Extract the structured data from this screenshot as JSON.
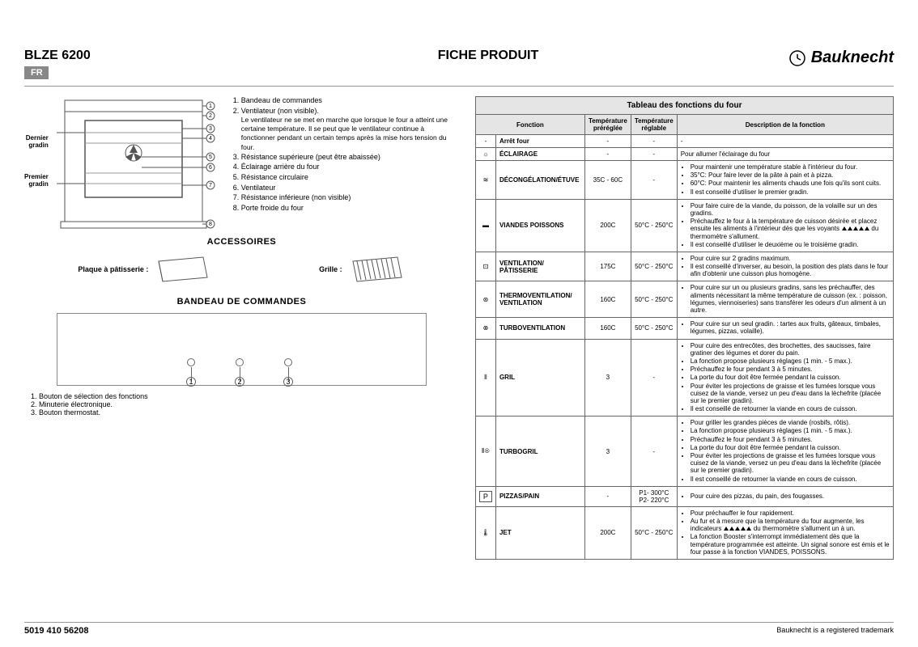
{
  "header": {
    "model": "BLZE 6200",
    "lang": "FR",
    "title": "FICHE PRODUIT",
    "brand": "Bauknecht"
  },
  "oven": {
    "label_top": "Dernier gradin",
    "label_bottom": "Premier gradin",
    "legend": [
      "Bandeau de commandes",
      "Ventilateur (non visible).",
      "Résistance supérieure (peut être abaissée)",
      "Éclairage arrière du four",
      "Résistance circulaire",
      "Ventilateur",
      "Résistance inférieure (non visible)",
      "Porte froide du four"
    ],
    "item2_sub": "Le ventilateur ne se met en marche que lorsque le four a atteint une certaine température. Il se peut que le ventilateur continue à fonctionner pendant un certain temps après la mise hors tension du four."
  },
  "accessories": {
    "title": "ACCESSOIRES",
    "items": [
      {
        "label": "Plaque à pâtisserie :"
      },
      {
        "label": "Grille :"
      }
    ]
  },
  "controls": {
    "title": "BANDEAU DE COMMANDES",
    "legend": [
      "Bouton de sélection des fonctions",
      "Minuterie électronique.",
      "Bouton thermostat."
    ]
  },
  "functions": {
    "caption": "Tableau des fonctions du four",
    "headers": {
      "function": "Fonction",
      "preset": "Température préréglée",
      "adjustable": "Température réglable",
      "desc": "Description de la fonction"
    },
    "rows": [
      {
        "icon": "-",
        "name": "Arrêt four",
        "preset": "-",
        "adjust": "-",
        "desc": [
          "-"
        ]
      },
      {
        "icon": "☼",
        "name": "ÉCLAIRAGE",
        "preset": "-",
        "adjust": "-",
        "desc": [
          "Pour allumer l'éclairage du four"
        ]
      },
      {
        "icon": "≋",
        "name": "DÉCONGÉLATION/ÉTUVE",
        "preset": "35C - 60C",
        "adjust": "-",
        "desc": [
          "Pour maintenir une température stable à l'intérieur du four.",
          "35°C: Pour faire lever de la pâte à pain et à pizza.",
          "60°C: Pour maintenir les aliments chauds une fois qu'ils sont cuits.",
          "Il est conseillé d'utiliser le premier gradin."
        ]
      },
      {
        "icon": "▬",
        "name": "VIANDES POISSONS",
        "preset": "200C",
        "adjust": "50°C - 250°C",
        "desc": [
          "Pour faire cuire de la viande, du poisson, de la volaille sur un des gradins.",
          "Préchauffez le four à la température de cuisson désirée et placez ensuite les aliments à l'intérieur dès que les voyants ▲ ▲ ▲ ▲ ▲ du thermomètre s'allument.",
          "Il est conseillé d'utiliser le deuxième ou le troisième gradin."
        ]
      },
      {
        "icon": "⊡",
        "name": "VENTILATION/ PÂTISSERIE",
        "preset": "175C",
        "adjust": "50°C - 250°C",
        "desc": [
          "Pour cuire sur 2 gradins maximum.",
          "Il est conseillé d'inverser, au besoin, la position des plats dans le four afin d'obtenir une cuisson plus homogène."
        ]
      },
      {
        "icon": "⊛",
        "name": "THERMOVENTILATION/ VENTILATION",
        "preset": "160C",
        "adjust": "50°C - 250°C",
        "desc": [
          "Pour cuire sur un ou plusieurs gradins, sans les préchauffer, des aliments nécessitant la même température de cuisson (ex. : poisson, légumes, viennoiseries) sans transférer les odeurs d'un aliment à un autre."
        ]
      },
      {
        "icon": "⊗",
        "name": "TURBOVENTILATION",
        "preset": "160C",
        "adjust": "50°C - 250°C",
        "desc": [
          "Pour cuire sur un seul gradin. : tartes aux fruits, gâteaux, timbales, légumes, pizzas, volaille)."
        ]
      },
      {
        "icon": "⫴",
        "name": "GRIL",
        "preset": "3",
        "adjust": "-",
        "desc": [
          "Pour cuire des entrecôtes, des brochettes, des saucisses, faire gratiner des légumes et dorer du pain.",
          "La fonction propose plusieurs réglages (1 min. - 5 max.).",
          "Préchauffez le four pendant 3 à 5 minutes.",
          "La porte du four doit être fermée pendant la cuisson.",
          "Pour éviter les projections de graisse et les fumées lorsque vous cuisez de la viande, versez un peu d'eau dans la lèchefrite (placée sur le premier gradin).",
          "Il est conseillé de retourner la viande en cours de cuisson."
        ]
      },
      {
        "icon": "⫴⊛",
        "name": "TURBOGRIL",
        "preset": "3",
        "adjust": "-",
        "desc": [
          "Pour griller les grandes pièces de viande (rosbifs, rôtis).",
          "La fonction propose plusieurs réglages (1 min. - 5 max.).",
          "Préchauffez le four pendant 3 à 5 minutes.",
          "La porte du four doit être fermée pendant la cuisson.",
          "Pour éviter les projections de graisse et les fumées lorsque vous cuisez de la viande, versez un peu d'eau dans la lèchefrite (placée sur le premier gradin).",
          "Il est conseillé de retourner la viande en cours de cuisson."
        ]
      },
      {
        "icon": "P",
        "name": "PIZZAS/PAIN",
        "preset": "-",
        "adjust": "P1- 300°C\nP2- 220°C",
        "desc": [
          "Pour cuire des pizzas, du pain, des fougasses."
        ]
      },
      {
        "icon": "🌡",
        "name": "JET",
        "preset": "200C",
        "adjust": "50°C - 250°C",
        "desc": [
          "Pour préchauffer le four rapidement.",
          "Au fur et à mesure que la température du four augmente, les indicateurs ▲ ▲ ▲ ▲ ▲ du thermomètre s'allument un à un.",
          "La fonction Booster s'interrompt immédiatement dès que la température programmée est atteinte. Un signal sonore est émis et le four passe à la fonction VIANDES, POISSONS."
        ]
      }
    ]
  },
  "footer": {
    "code": "5019 410 56208",
    "trademark": "Bauknecht is a registered trademark"
  }
}
